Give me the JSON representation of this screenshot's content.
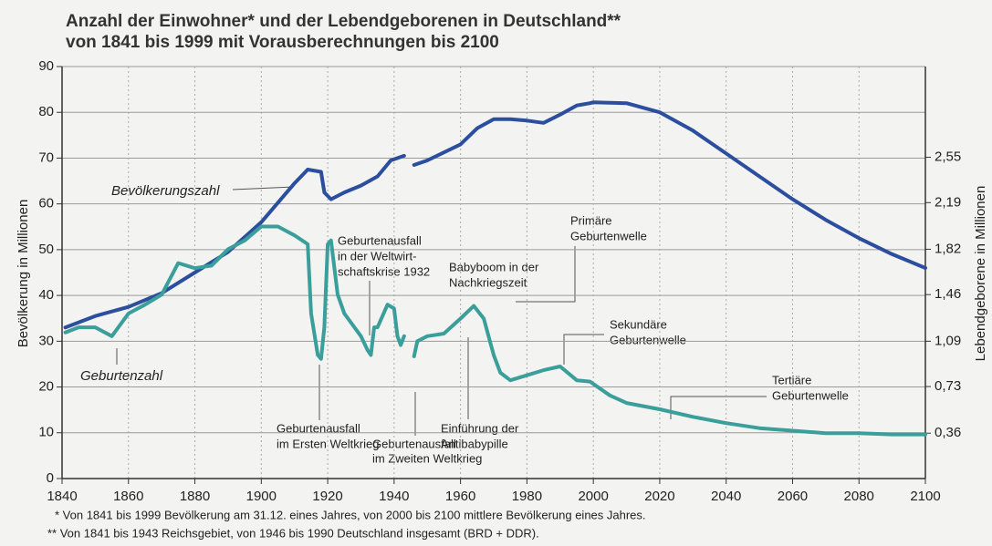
{
  "chart_data": {
    "type": "line",
    "title": "Anzahl der Einwohner* und der Lebendgeborenen in Deutschland**",
    "subtitle": "von 1841 bis 1999 mit Vorausberechnungen bis 2100",
    "ylabel": "Bevölkerung in Millionen",
    "y2label": "Lebendgeborene in Millionen",
    "xlim": [
      1840,
      2100
    ],
    "xticks": [
      1840,
      1860,
      1880,
      1900,
      1920,
      1940,
      1960,
      1980,
      2000,
      2020,
      2040,
      2060,
      2080,
      2100
    ],
    "ylim": [
      0,
      90
    ],
    "yticks": [
      0,
      10,
      20,
      30,
      40,
      50,
      60,
      70,
      80,
      90
    ],
    "y2lim": [
      0,
      3.27
    ],
    "y2ticks": [
      {
        "value": 0.36,
        "label": "0,36"
      },
      {
        "value": 0.73,
        "label": "0,73"
      },
      {
        "value": 1.09,
        "label": "1,09"
      },
      {
        "value": 1.46,
        "label": "1,46"
      },
      {
        "value": 1.82,
        "label": "1,82"
      },
      {
        "value": 2.19,
        "label": "2,19"
      },
      {
        "value": 2.55,
        "label": "2,55"
      }
    ],
    "grid": true,
    "series": [
      {
        "name": "Bevölkerungszahl",
        "color": "#2b4e9e",
        "x": [
          1841,
          1850,
          1860,
          1870,
          1880,
          1890,
          1900,
          1910,
          1914,
          1918,
          1919,
          1921,
          1925,
          1930,
          1935,
          1939,
          1943,
          1945,
          1946,
          1950,
          1960,
          1965,
          1970,
          1975,
          1980,
          1985,
          1990,
          1995,
          1999,
          2000,
          2010,
          2020,
          2030,
          2040,
          2050,
          2060,
          2070,
          2080,
          2090,
          2100
        ],
        "values": [
          33,
          35.5,
          37.5,
          40.5,
          45,
          49.5,
          56,
          64.5,
          67.5,
          67,
          62.5,
          61,
          62.5,
          64,
          66,
          69.5,
          70.5,
          null,
          68.5,
          69.5,
          73,
          76.5,
          78.5,
          78.5,
          78.2,
          77.7,
          79.5,
          81.5,
          82,
          82.2,
          82,
          80,
          76,
          71,
          66,
          61,
          56.5,
          52.5,
          49,
          46
        ]
      },
      {
        "name": "Geburtenzahl",
        "color": "#3a9e9a",
        "axis": "y2",
        "x": [
          1841,
          1845,
          1850,
          1855,
          1860,
          1865,
          1870,
          1875,
          1880,
          1885,
          1890,
          1895,
          1900,
          1905,
          1910,
          1914,
          1915,
          1917,
          1918,
          1919,
          1920,
          1921,
          1923,
          1925,
          1930,
          1932,
          1933,
          1934,
          1935,
          1938,
          1940,
          1941,
          1942,
          1943,
          1945,
          1946,
          1947,
          1950,
          1955,
          1960,
          1964,
          1967,
          1970,
          1972,
          1975,
          1980,
          1985,
          1990,
          1995,
          1999,
          2005,
          2010,
          2020,
          2030,
          2040,
          2050,
          2060,
          2070,
          2080,
          2090,
          2100
        ],
        "values": [
          1.16,
          1.2,
          1.2,
          1.13,
          1.31,
          1.38,
          1.46,
          1.71,
          1.67,
          1.69,
          1.82,
          1.89,
          2.0,
          2.0,
          1.93,
          1.86,
          1.31,
          0.98,
          0.95,
          1.2,
          1.86,
          1.89,
          1.46,
          1.31,
          1.13,
          1.02,
          0.98,
          1.2,
          1.2,
          1.38,
          1.35,
          1.13,
          1.06,
          1.13,
          null,
          0.97,
          1.09,
          1.13,
          1.15,
          1.27,
          1.37,
          1.27,
          0.98,
          0.84,
          0.78,
          0.82,
          0.86,
          0.89,
          0.78,
          0.77,
          0.66,
          0.6,
          0.55,
          0.49,
          0.44,
          0.4,
          0.38,
          0.36,
          0.36,
          0.35,
          0.35
        ]
      }
    ],
    "annotations": {
      "ww1": [
        "Geburtenausfall",
        "im Ersten Weltkrieg"
      ],
      "crisis": [
        "Geburtenausfall",
        "in der Weltwirt-",
        "schaftskrise 1932"
      ],
      "babyboom": [
        "Babyboom in der",
        "Nachkriegszeit"
      ],
      "primary": [
        "Primäre",
        "Geburtenwelle"
      ],
      "secondary": [
        "Sekundäre",
        "Geburtenwelle"
      ],
      "tertiary": [
        "Tertiäre",
        "Geburtenwelle"
      ],
      "pill": [
        "Einführung der",
        "Antibabypille"
      ],
      "ww2": [
        "Geburtenausfall",
        "im Zweiten Weltkrieg"
      ]
    },
    "footnotes": [
      "* Von 1841 bis 1999 Bevölkerung am 31.12. eines Jahres, von 2000 bis 2100 mittlere Bevölkerung eines Jahres.",
      "** Von 1841 bis 1943 Reichsgebiet, von 1946 bis 1990 Deutschland insgesamt (BRD + DDR)."
    ]
  }
}
